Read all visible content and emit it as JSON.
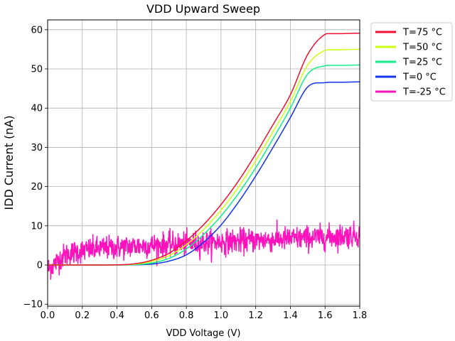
{
  "chart_data": {
    "type": "line",
    "title": "VDD Upward Sweep",
    "xlabel": "VDD Voltage (V)",
    "ylabel": "IDD Current (nA)",
    "xlim": [
      0.0,
      1.8
    ],
    "ylim": [
      -10.5,
      62.5
    ],
    "xticks": [
      0.0,
      0.2,
      0.4,
      0.6,
      0.8,
      1.0,
      1.2,
      1.4,
      1.6,
      1.8
    ],
    "xtick_labels": [
      "0.0",
      "0.2",
      "0.4",
      "0.6",
      "0.8",
      "1.0",
      "1.2",
      "1.4",
      "1.6",
      "1.8"
    ],
    "yticks": [
      -10,
      0,
      10,
      20,
      30,
      40,
      50,
      60
    ],
    "ytick_labels": [
      "−10",
      "0",
      "10",
      "20",
      "30",
      "40",
      "50",
      "60"
    ],
    "grid": true,
    "legend_position": "outside-top-right",
    "x": [
      0.0,
      0.1,
      0.2,
      0.3,
      0.4,
      0.5,
      0.6,
      0.7,
      0.8,
      0.9,
      1.0,
      1.1,
      1.2,
      1.3,
      1.4,
      1.5,
      1.6,
      1.7,
      1.8
    ],
    "series": [
      {
        "name": "T=75 °C",
        "color": "#ee1133",
        "noisy": false,
        "values": [
          0.0,
          0.0,
          0.0,
          0.0,
          0.05,
          0.3,
          1.2,
          3.0,
          6.2,
          10.3,
          15.4,
          21.4,
          28.3,
          35.8,
          43.4,
          53.7,
          58.8,
          59.0,
          59.1
        ]
      },
      {
        "name": "T=50 °C",
        "color": "#ccff11",
        "noisy": false,
        "values": [
          0.0,
          0.0,
          0.0,
          0.0,
          0.03,
          0.2,
          0.9,
          2.4,
          5.2,
          9.1,
          14.0,
          19.8,
          26.6,
          34.0,
          41.7,
          51.0,
          54.7,
          54.9,
          55.0
        ]
      },
      {
        "name": "T=25 °C",
        "color": "#11ee88",
        "noisy": false,
        "values": [
          0.0,
          0.0,
          0.0,
          0.0,
          0.02,
          0.1,
          0.5,
          1.7,
          4.1,
          7.8,
          12.5,
          18.2,
          24.8,
          32.2,
          40.0,
          48.7,
          50.8,
          50.9,
          51.0
        ]
      },
      {
        "name": "T=0 °C",
        "color": "#1133ee",
        "noisy": false,
        "values": [
          0.0,
          0.0,
          0.0,
          0.0,
          0.0,
          0.05,
          0.25,
          1.0,
          2.6,
          5.8,
          10.2,
          16.0,
          22.7,
          30.0,
          37.6,
          45.4,
          46.5,
          46.6,
          46.7
        ]
      },
      {
        "name": "T=-25 °C",
        "color": "#ff11bb",
        "noisy": true,
        "values": [
          -1.0,
          2.5,
          3.6,
          4.2,
          4.5,
          4.8,
          5.0,
          5.2,
          5.4,
          5.7,
          5.9,
          6.1,
          6.3,
          6.5,
          6.7,
          6.9,
          7.1,
          7.4,
          7.7
        ]
      }
    ]
  }
}
